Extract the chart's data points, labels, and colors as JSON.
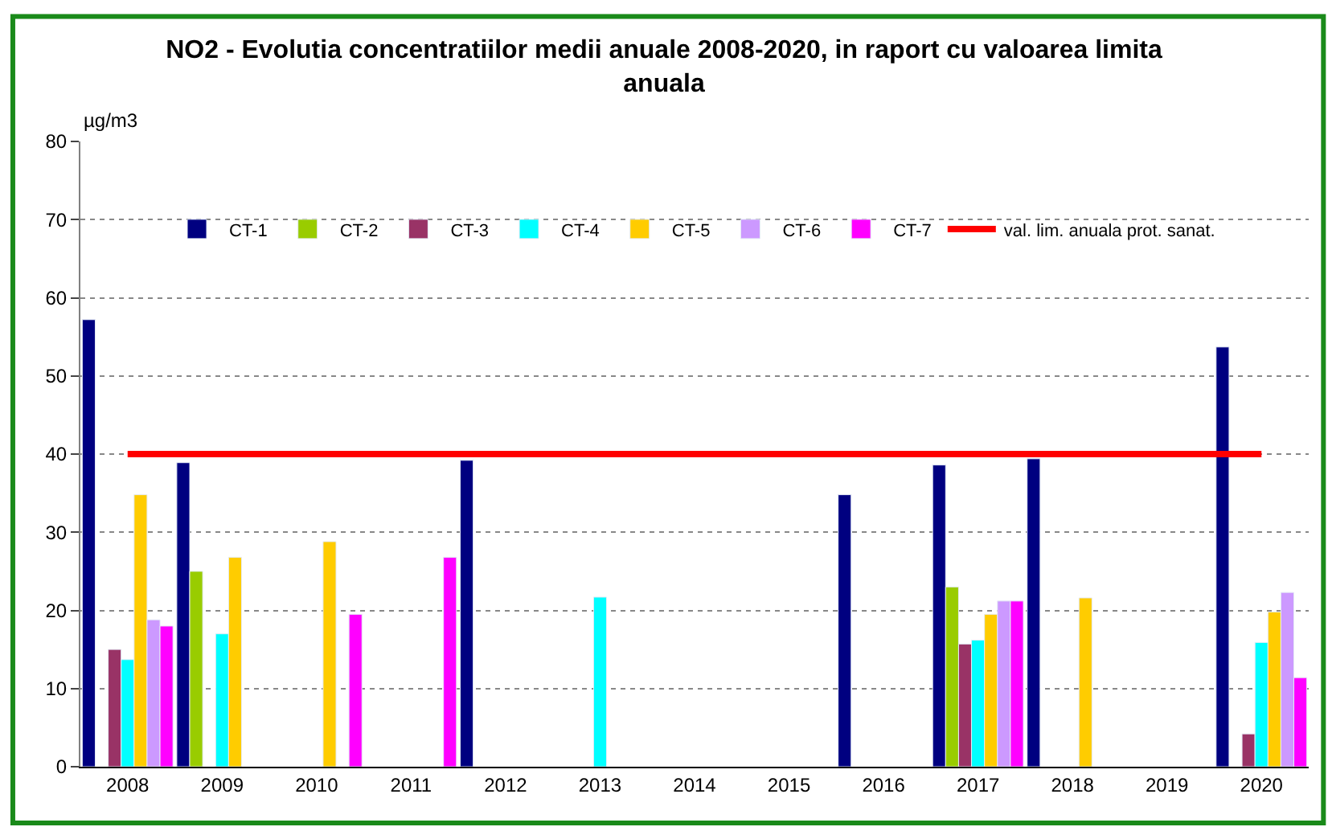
{
  "chart_data": {
    "type": "bar",
    "title": "NO2 - Evolutia concentratiilor medii anuale 2008-2020, in raport cu valoarea limita anuala",
    "ylabel": "µg/m3",
    "categories": [
      "2008",
      "2009",
      "2010",
      "2011",
      "2012",
      "2013",
      "2014",
      "2015",
      "2016",
      "2017",
      "2018",
      "2019",
      "2020"
    ],
    "series": [
      {
        "name": "CT-1",
        "color": "#000080",
        "values": [
          57.2,
          38.9,
          null,
          null,
          39.2,
          null,
          null,
          null,
          34.8,
          38.6,
          39.4,
          null,
          53.7
        ]
      },
      {
        "name": "CT-2",
        "color": "#99cc00",
        "values": [
          null,
          25,
          null,
          null,
          null,
          null,
          null,
          null,
          null,
          23,
          null,
          null,
          null
        ]
      },
      {
        "name": "CT-3",
        "color": "#993366",
        "values": [
          15,
          null,
          null,
          null,
          null,
          null,
          null,
          null,
          null,
          15.7,
          null,
          null,
          4.2
        ]
      },
      {
        "name": "CT-4",
        "color": "#00ffff",
        "values": [
          13.7,
          17,
          null,
          null,
          null,
          21.7,
          null,
          null,
          null,
          16.2,
          null,
          null,
          15.9
        ]
      },
      {
        "name": "CT-5",
        "color": "#ffcc00",
        "values": [
          34.8,
          26.8,
          28.8,
          null,
          null,
          null,
          null,
          null,
          null,
          19.5,
          21.6,
          null,
          19.8
        ]
      },
      {
        "name": "CT-6",
        "color": "#cc99ff",
        "values": [
          18.8,
          null,
          null,
          null,
          null,
          null,
          null,
          null,
          null,
          21.2,
          null,
          null,
          22.3
        ]
      },
      {
        "name": "CT-7",
        "color": "#ff00ff",
        "values": [
          18,
          null,
          19.5,
          26.8,
          null,
          null,
          null,
          null,
          null,
          21.2,
          null,
          null,
          11.4
        ]
      },
      {
        "name": "val. lim. anuala prot. sanat.",
        "type": "line",
        "color": "#ff0000",
        "marker": "none",
        "values": [
          40,
          40,
          40,
          40,
          40,
          40,
          40,
          40,
          40,
          40,
          40,
          40,
          40
        ]
      }
    ],
    "ylim": [
      0,
      80
    ],
    "yticks": [
      0,
      10,
      20,
      30,
      40,
      50,
      60,
      70,
      80
    ],
    "grid": "y",
    "legend": "top"
  }
}
